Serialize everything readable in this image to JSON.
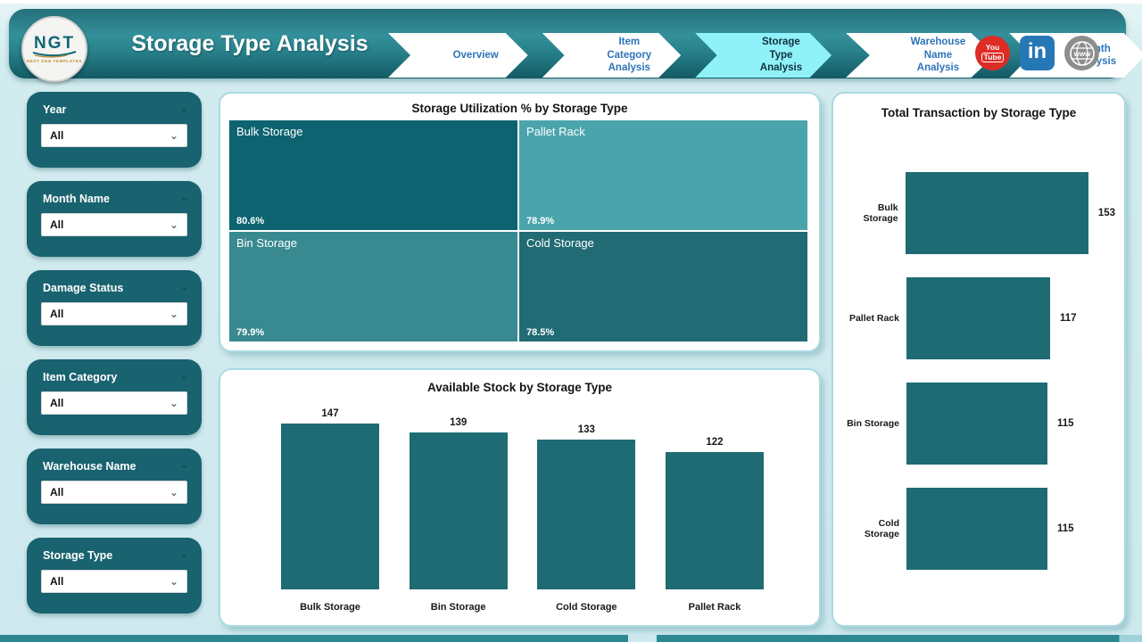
{
  "header": {
    "title": "Storage Type Analysis",
    "logo": {
      "text": "NGT",
      "subtext": "NEXT GEN TEMPLATES"
    },
    "nav": [
      {
        "label": "Overview",
        "active": false
      },
      {
        "label": "Item Category Analysis",
        "active": false
      },
      {
        "label": "Storage Type Analysis",
        "active": true
      },
      {
        "label": "Warehouse Name Analysis",
        "active": false
      },
      {
        "label": "Month Analysis",
        "active": false
      }
    ],
    "social": {
      "youtube": {
        "line1": "You",
        "line2": "Tube",
        "color": "#dd2c26"
      },
      "linkedin": {
        "label": "in",
        "color": "#2577b5"
      },
      "website": {
        "label": "www",
        "color": "#8d8d8d"
      }
    }
  },
  "sidebar": {
    "filters": [
      {
        "label": "Year",
        "value": "All"
      },
      {
        "label": "Month Name",
        "value": "All"
      },
      {
        "label": "Damage Status",
        "value": "All"
      },
      {
        "label": "Item Category",
        "value": "All"
      },
      {
        "label": "Warehouse Name",
        "value": "All"
      },
      {
        "label": "Storage Type",
        "value": "All"
      }
    ]
  },
  "chart_data": [
    {
      "type": "heatmap",
      "subtype": "treemap",
      "title": "Storage Utilization % by Storage Type",
      "items": [
        {
          "label": "Bulk Storage",
          "value": 80.6,
          "display": "80.6%",
          "color": "#0d6470"
        },
        {
          "label": "Pallet Rack",
          "value": 78.9,
          "display": "78.9%",
          "color": "#4aa4ac"
        },
        {
          "label": "Bin Storage",
          "value": 79.9,
          "display": "79.9%",
          "color": "#388a90"
        },
        {
          "label": "Cold Storage",
          "value": 78.5,
          "display": "78.5%",
          "color": "#206b74"
        }
      ],
      "legend": "none"
    },
    {
      "type": "bar",
      "title": "Available Stock by Storage Type",
      "categories": [
        "Bulk Storage",
        "Bin Storage",
        "Cold Storage",
        "Pallet Rack"
      ],
      "values": [
        147,
        139,
        133,
        122
      ],
      "bar_color": "#1e6b74",
      "data_labels": true,
      "axes_visible": false
    },
    {
      "type": "bar",
      "orientation": "horizontal",
      "title": "Total Transaction by Storage Type",
      "categories": [
        "Bulk Storage",
        "Pallet Rack",
        "Bin Storage",
        "Cold Storage"
      ],
      "values": [
        153,
        117,
        115,
        115
      ],
      "bar_color": "#1e6b74",
      "data_labels": true,
      "axes_visible": false
    }
  ]
}
